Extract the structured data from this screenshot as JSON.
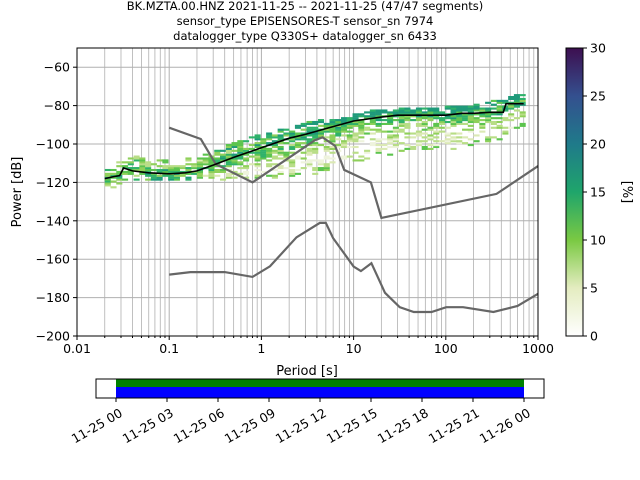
{
  "chart_data": {
    "type": "heatmap",
    "title_lines": [
      "BK.MZTA.00.HNZ   2021-11-25 -- 2021-11-25  (47/47 segments)",
      "sensor_type EPISENSORES-T sensor_sn 7974",
      "datalogger_type Q330S+ datalogger_sn 6433"
    ],
    "xlabel": "Period [s]",
    "ylabel": "Power [dB]",
    "xscale": "log",
    "xlim": [
      0.01,
      1000
    ],
    "ylim": [
      -200,
      -50
    ],
    "xticks": [
      0.01,
      0.1,
      1,
      10,
      100,
      1000
    ],
    "xtick_labels": [
      "0.01",
      "0.1",
      "1",
      "10",
      "100",
      "1000"
    ],
    "yticks": [
      -60,
      -80,
      -100,
      -120,
      -140,
      -160,
      -180,
      -200
    ],
    "ytick_labels": [
      "−60",
      "−80",
      "−100",
      "−120",
      "−140",
      "−160",
      "−180",
      "−200"
    ],
    "grid": true,
    "colorbar": {
      "label": "[%]",
      "range": [
        0,
        30
      ],
      "ticks": [
        "0",
        "5",
        "10",
        "15",
        "20",
        "25",
        "30"
      ],
      "colors": [
        "#ffffff",
        "#e4ecc0",
        "#7ac943",
        "#1fa56b",
        "#1f7a8a",
        "#34508f",
        "#3d0f50"
      ]
    },
    "density_envelope": {
      "period": [
        0.02,
        0.028,
        0.03,
        0.05,
        0.1,
        0.2,
        0.3,
        0.5,
        1,
        2,
        4,
        8,
        15,
        30,
        60,
        100,
        200,
        400,
        700
      ],
      "low": [
        -124,
        -122,
        -119,
        -119,
        -119,
        -119,
        -119,
        -119,
        -118,
        -117,
        -115,
        -110,
        -107,
        -105,
        -103,
        -103,
        -100,
        -97,
        -90
      ],
      "high": [
        -113,
        -112,
        -106,
        -107,
        -108,
        -107,
        -104,
        -100,
        -95,
        -91,
        -88,
        -86,
        -83,
        -82,
        -81,
        -81,
        -80,
        -77,
        -74
      ]
    },
    "mean": {
      "period": [
        0.02,
        0.025,
        0.029,
        0.032,
        0.04,
        0.06,
        0.1,
        0.15,
        0.2,
        0.3,
        0.5,
        1,
        2,
        3,
        5,
        10,
        20,
        30,
        50,
        100,
        150,
        200,
        300,
        420,
        450,
        700
      ],
      "db": [
        -118,
        -117,
        -116.5,
        -112.5,
        -114,
        -115,
        -115.5,
        -115,
        -114,
        -111,
        -107,
        -102,
        -97,
        -95,
        -92,
        -88,
        -86,
        -85,
        -85,
        -85,
        -84,
        -84,
        -83.5,
        -83.5,
        -79,
        -79
      ]
    },
    "nhnm": {
      "period": [
        0.1,
        0.22,
        0.32,
        0.8,
        3.8,
        4.6,
        6.3,
        7.9,
        15.4,
        20,
        354.8,
        1000
      ],
      "db": [
        -91.5,
        -97.4,
        -110.5,
        -120,
        -98,
        -96.5,
        -101,
        -113.5,
        -120,
        -138.5,
        -126,
        -111.5
      ]
    },
    "nlnm": {
      "period": [
        0.1,
        0.17,
        0.4,
        0.8,
        1.24,
        2.4,
        4.3,
        5.0,
        6.0,
        10.0,
        12.0,
        15.6,
        21.9,
        31.6,
        45.0,
        70.0,
        101.0,
        154.0,
        328.0,
        600.0,
        1000.0
      ],
      "db": [
        -168,
        -166.7,
        -166.7,
        -169.2,
        -163.7,
        -148.6,
        -141.1,
        -141.1,
        -149,
        -163.8,
        -166.2,
        -162.1,
        -177.5,
        -185,
        -187.5,
        -187.5,
        -185,
        -185,
        -187.5,
        -184.4,
        -178
      ]
    },
    "time_axis": {
      "tick_labels": [
        "11-25 00",
        "11-25 03",
        "11-25 06",
        "11-25 09",
        "11-25 12",
        "11-25 15",
        "11-25 18",
        "11-25 21",
        "11-26 00"
      ],
      "coverage_colors": [
        "#008000",
        "#0000ff"
      ]
    }
  }
}
